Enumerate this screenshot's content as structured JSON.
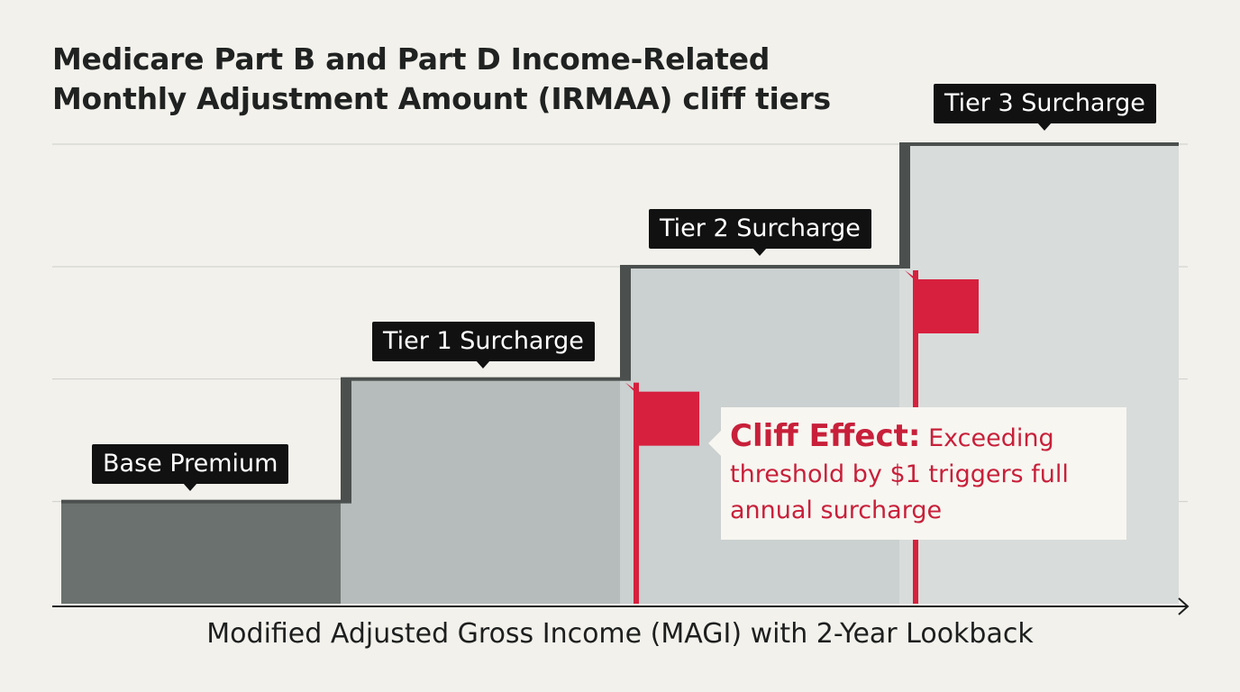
{
  "title_line1": "Medicare Part B and Part D Income-Related",
  "title_line2": "Monthly Adjustment Amount (IRMAA) cliff tiers",
  "callout": {
    "heading": "Cliff Effect:",
    "text": "Exceeding threshold by $1 triggers full annual surcharge"
  },
  "colors": {
    "base": "#6a716e",
    "tier1": "#b6bcbb",
    "tier2": "#cbd0d0",
    "tier3": "#d8dcdb",
    "step_edge": "#4b504e",
    "flag": "#d7203e",
    "background": "#f2f1ec"
  },
  "chart_data": {
    "type": "bar",
    "title": "Medicare Part B and Part D Income-Related Monthly Adjustment Amount (IRMAA) cliff tiers",
    "xlabel": "Modified Adjusted Gross Income (MAGI) with 2-Year Lookback",
    "ylabel": "",
    "categories": [
      "Base Premium",
      "Tier 1 Surcharge",
      "Tier 2 Surcharge",
      "Tier 3 Surcharge"
    ],
    "values": [
      1,
      2.2,
      3.3,
      4.5
    ],
    "ylim": [
      0,
      4.5
    ],
    "grid": true,
    "annotation": "Cliff Effect: Exceeding threshold by $1 triggers full annual surcharge"
  }
}
